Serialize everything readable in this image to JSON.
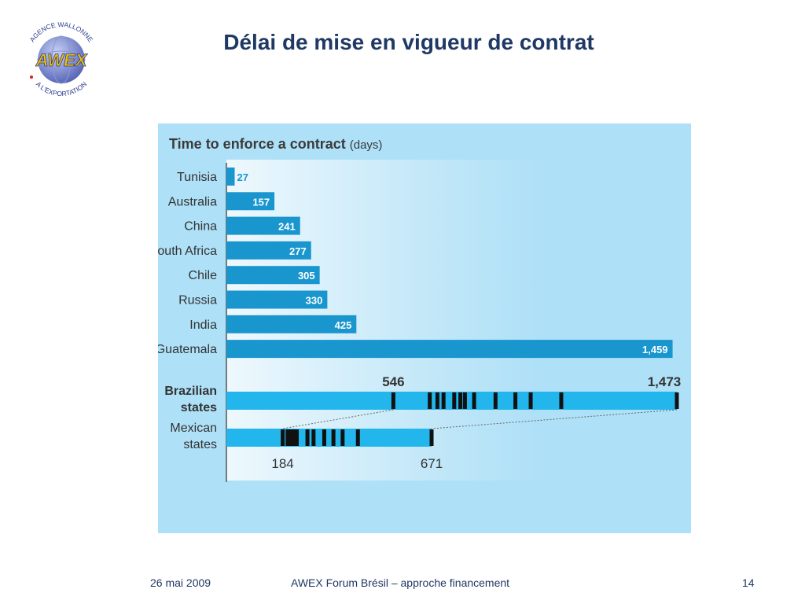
{
  "slide": {
    "title": "Délai de mise en vigueur de contrat",
    "logo": {
      "text_top": "AGENCE WALLONNE",
      "text_bottom": "A L'EXPORTATION",
      "monogram": "AWEX",
      "colors": {
        "globe": "#6f7fc9",
        "ring_text": "#2b3a8c",
        "letters": "#f2c200"
      }
    }
  },
  "footer": {
    "date": "26 mai 2009",
    "event": "AWEX Forum Brésil – approche financement",
    "page": "14"
  },
  "chart_data": {
    "type": "bar",
    "title": "Time to enforce a contract",
    "title_unit": "(days)",
    "orientation": "horizontal",
    "categories": [
      "Tunisia",
      "Australia",
      "China",
      "South Africa",
      "Chile",
      "Russia",
      "India",
      "Guatemala"
    ],
    "values": [
      27,
      157,
      241,
      277,
      305,
      330,
      425,
      1459
    ],
    "value_labels": [
      "27",
      "157",
      "241",
      "277",
      "305",
      "330",
      "425",
      "1,459"
    ],
    "xlim": [
      0,
      1473
    ],
    "colors": {
      "bar": "#1a96cf",
      "range_band": "#22b6ec",
      "tick": "#111111",
      "axis": "#555555"
    },
    "ranges": [
      {
        "name_lines": [
          "Brazilian",
          "states"
        ],
        "min": 546,
        "max": 1473,
        "min_label": "546",
        "max_label": "1,473",
        "ticks": [
          546,
          665,
          690,
          710,
          745,
          765,
          780,
          810,
          880,
          945,
          995,
          1095,
          1473
        ]
      },
      {
        "name_lines": [
          "Mexican",
          "states"
        ],
        "min": 184,
        "max": 671,
        "min_label": "184",
        "max_label": "671",
        "ticks": [
          184,
          200,
          210,
          220,
          230,
          265,
          285,
          320,
          350,
          380,
          430,
          671
        ]
      }
    ]
  }
}
